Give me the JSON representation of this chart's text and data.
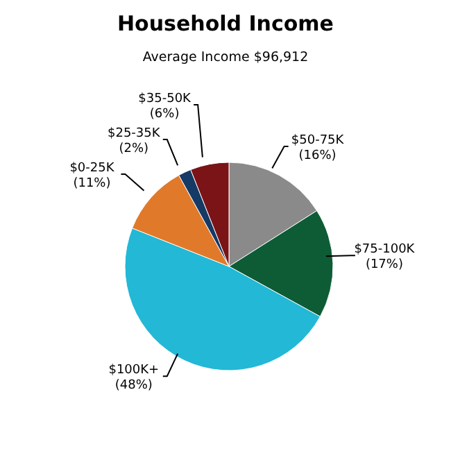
{
  "chart_data": {
    "type": "pie",
    "title": "Household Income",
    "subtitle": "Average Income  $96,912",
    "categories": [
      "$50-75K",
      "$75-100K",
      "$100K+",
      "$0-25K",
      "$25-35K",
      "$35-50K"
    ],
    "values": [
      16,
      17,
      48,
      11,
      2,
      6
    ],
    "value_labels": [
      "(16%)",
      "(17%)",
      "(48%)",
      "(11%)",
      "(2%)",
      "(6%)"
    ],
    "colors": [
      "#8a8a8a",
      "#0e5c36",
      "#22b8d6",
      "#e07a2a",
      "#163a66",
      "#7a1416"
    ],
    "legend": false
  }
}
